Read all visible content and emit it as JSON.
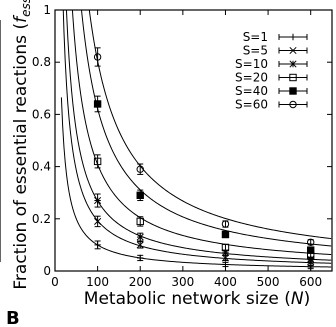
{
  "panel_label": "B",
  "chart_data": {
    "type": "line-scatter",
    "xlabel": "Metabolic network size (",
    "xlabel_var": "N",
    "xlabel_tail": ")",
    "ylabel": "Fraction of essential reactions (",
    "ylabel_var": "f",
    "ylabel_sub": "ess",
    "ylabel_tail": ")",
    "xlim": [
      0,
      650
    ],
    "ylim": [
      0,
      1
    ],
    "x_ticks": [
      0,
      100,
      200,
      300,
      400,
      500,
      600
    ],
    "y_ticks": [
      0,
      0.2,
      0.4,
      0.6,
      0.8,
      1
    ],
    "y_tick_labels": [
      "0",
      "0.2",
      "0.4",
      "0.6",
      "0.8",
      "1"
    ],
    "legend_position": "top-right",
    "x": [
      100,
      200,
      400,
      600
    ],
    "series": [
      {
        "name": "S=1",
        "marker": "plus",
        "values": [
          0.1,
          0.05,
          0.025,
          0.015
        ],
        "errors": [
          0.015,
          0.01,
          0.008,
          0.006
        ]
      },
      {
        "name": "S=5",
        "marker": "x",
        "values": [
          0.19,
          0.1,
          0.05,
          0.035
        ],
        "errors": [
          0.02,
          0.012,
          0.01,
          0.008
        ]
      },
      {
        "name": "S=10",
        "marker": "star",
        "values": [
          0.27,
          0.13,
          0.07,
          0.045
        ],
        "errors": [
          0.025,
          0.015,
          0.01,
          0.008
        ]
      },
      {
        "name": "S=20",
        "marker": "open-square",
        "values": [
          0.42,
          0.19,
          0.09,
          0.06
        ],
        "errors": [
          0.025,
          0.018,
          0.012,
          0.008
        ]
      },
      {
        "name": "S=40",
        "marker": "filled-square",
        "values": [
          0.64,
          0.29,
          0.14,
          0.08
        ],
        "errors": [
          0.03,
          0.02,
          0.012,
          0.008
        ]
      },
      {
        "name": "S=60",
        "marker": "open-circle",
        "values": [
          0.82,
          0.39,
          0.18,
          0.11
        ],
        "errors": [
          0.035,
          0.02,
          0.012,
          0.01
        ]
      }
    ]
  }
}
